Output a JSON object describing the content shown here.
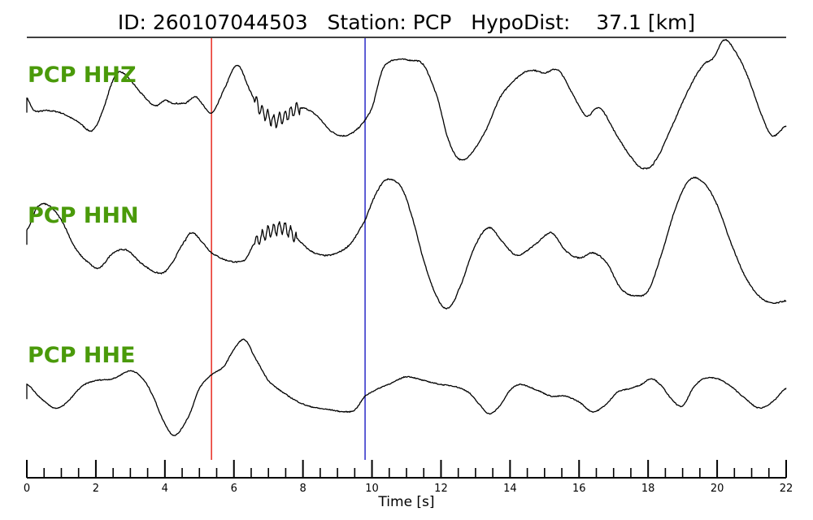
{
  "chart_data": {
    "type": "line",
    "title": "ID: 260107044503   Station: PCP   HypoDist:    37.1 [km]",
    "xlabel": "Time [s]",
    "ylabel": "",
    "xlim": [
      0,
      22
    ],
    "x_ticks": [
      "0",
      "2",
      "4",
      "6",
      "8",
      "10",
      "12",
      "14",
      "16",
      "18",
      "20",
      "22"
    ],
    "minor_tick_step": 0.5,
    "grid": false,
    "label_color": "#4a9a0a",
    "trace_color": "#000000",
    "picks": [
      {
        "name": "P",
        "x": 5.35,
        "color": "#e8281e"
      },
      {
        "name": "S",
        "x": 9.8,
        "color": "#2a2ac8"
      }
    ],
    "series": [
      {
        "name": "PCP HHZ",
        "jitter_x": [
          6.6,
          7.9
        ],
        "points": [
          [
            0,
            0.2
          ],
          [
            0.2,
            -0.05
          ],
          [
            0.6,
            -0.05
          ],
          [
            1.0,
            -0.1
          ],
          [
            1.5,
            -0.28
          ],
          [
            1.9,
            -0.45
          ],
          [
            2.2,
            -0.05
          ],
          [
            2.5,
            0.55
          ],
          [
            2.7,
            0.72
          ],
          [
            3.0,
            0.55
          ],
          [
            3.3,
            0.3
          ],
          [
            3.7,
            0.05
          ],
          [
            4.0,
            0.15
          ],
          [
            4.2,
            0.1
          ],
          [
            4.6,
            0.1
          ],
          [
            4.9,
            0.22
          ],
          [
            5.35,
            -0.1
          ],
          [
            5.7,
            0.35
          ],
          [
            6.1,
            0.85
          ],
          [
            6.5,
            0.3
          ],
          [
            6.8,
            -0.05
          ],
          [
            7.2,
            -0.25
          ],
          [
            7.6,
            -0.1
          ],
          [
            8.0,
            0.0
          ],
          [
            8.4,
            -0.15
          ],
          [
            8.8,
            -0.45
          ],
          [
            9.2,
            -0.55
          ],
          [
            9.6,
            -0.4
          ],
          [
            10.0,
            0.0
          ],
          [
            10.3,
            0.75
          ],
          [
            10.6,
            0.95
          ],
          [
            11.1,
            0.95
          ],
          [
            11.5,
            0.85
          ],
          [
            11.9,
            0.2
          ],
          [
            12.2,
            -0.6
          ],
          [
            12.5,
            -1.0
          ],
          [
            12.8,
            -0.95
          ],
          [
            13.3,
            -0.45
          ],
          [
            13.7,
            0.2
          ],
          [
            14.2,
            0.6
          ],
          [
            14.6,
            0.75
          ],
          [
            15.0,
            0.7
          ],
          [
            15.4,
            0.75
          ],
          [
            15.8,
            0.3
          ],
          [
            16.2,
            -0.15
          ],
          [
            16.6,
            0.0
          ],
          [
            17.1,
            -0.55
          ],
          [
            17.6,
            -1.05
          ],
          [
            17.9,
            -1.2
          ],
          [
            18.2,
            -1.05
          ],
          [
            18.7,
            -0.35
          ],
          [
            19.2,
            0.4
          ],
          [
            19.6,
            0.85
          ],
          [
            19.9,
            1.0
          ],
          [
            20.2,
            1.35
          ],
          [
            20.5,
            1.15
          ],
          [
            20.9,
            0.6
          ],
          [
            21.3,
            -0.15
          ],
          [
            21.6,
            -0.55
          ],
          [
            22.0,
            -0.35
          ]
        ]
      },
      {
        "name": "PCP HHN",
        "jitter_x": [
          6.6,
          7.8
        ],
        "points": [
          [
            0,
            0.35
          ],
          [
            0.3,
            0.8
          ],
          [
            0.6,
            0.85
          ],
          [
            1.0,
            0.55
          ],
          [
            1.4,
            0.0
          ],
          [
            1.8,
            -0.3
          ],
          [
            2.1,
            -0.4
          ],
          [
            2.5,
            -0.1
          ],
          [
            2.9,
            -0.05
          ],
          [
            3.3,
            -0.3
          ],
          [
            3.8,
            -0.5
          ],
          [
            4.1,
            -0.4
          ],
          [
            4.6,
            0.15
          ],
          [
            4.8,
            0.3
          ],
          [
            5.1,
            0.1
          ],
          [
            5.35,
            -0.1
          ],
          [
            5.8,
            -0.25
          ],
          [
            6.3,
            -0.25
          ],
          [
            6.6,
            0.1
          ],
          [
            7.0,
            0.3
          ],
          [
            7.4,
            0.4
          ],
          [
            7.8,
            0.2
          ],
          [
            8.2,
            -0.05
          ],
          [
            8.6,
            -0.15
          ],
          [
            9.0,
            -0.1
          ],
          [
            9.4,
            0.1
          ],
          [
            9.8,
            0.55
          ],
          [
            10.1,
            1.05
          ],
          [
            10.4,
            1.35
          ],
          [
            10.8,
            1.25
          ],
          [
            11.1,
            0.75
          ],
          [
            11.5,
            -0.25
          ],
          [
            11.9,
            -1.0
          ],
          [
            12.2,
            -1.2
          ],
          [
            12.5,
            -0.85
          ],
          [
            13.0,
            0.05
          ],
          [
            13.4,
            0.4
          ],
          [
            13.8,
            0.1
          ],
          [
            14.2,
            -0.15
          ],
          [
            14.7,
            0.05
          ],
          [
            15.2,
            0.3
          ],
          [
            15.6,
            -0.05
          ],
          [
            16.0,
            -0.2
          ],
          [
            16.4,
            -0.1
          ],
          [
            16.8,
            -0.3
          ],
          [
            17.2,
            -0.8
          ],
          [
            17.6,
            -0.95
          ],
          [
            18.0,
            -0.85
          ],
          [
            18.4,
            -0.1
          ],
          [
            18.8,
            0.8
          ],
          [
            19.2,
            1.35
          ],
          [
            19.6,
            1.3
          ],
          [
            20.0,
            0.85
          ],
          [
            20.4,
            0.1
          ],
          [
            20.8,
            -0.55
          ],
          [
            21.2,
            -0.95
          ],
          [
            21.6,
            -1.1
          ],
          [
            22.0,
            -1.05
          ]
        ]
      },
      {
        "name": "PCP HHE",
        "jitter_x": [],
        "points": [
          [
            0,
            0.1
          ],
          [
            0.4,
            -0.25
          ],
          [
            0.8,
            -0.5
          ],
          [
            1.1,
            -0.4
          ],
          [
            1.6,
            0.05
          ],
          [
            2.0,
            0.2
          ],
          [
            2.5,
            0.25
          ],
          [
            3.0,
            0.45
          ],
          [
            3.3,
            0.3
          ],
          [
            3.6,
            -0.1
          ],
          [
            4.0,
            -0.9
          ],
          [
            4.3,
            -1.2
          ],
          [
            4.7,
            -0.7
          ],
          [
            5.0,
            0.0
          ],
          [
            5.35,
            0.35
          ],
          [
            5.7,
            0.55
          ],
          [
            6.0,
            1.0
          ],
          [
            6.3,
            1.25
          ],
          [
            6.6,
            0.8
          ],
          [
            7.0,
            0.2
          ],
          [
            7.5,
            -0.15
          ],
          [
            8.0,
            -0.4
          ],
          [
            8.4,
            -0.5
          ],
          [
            8.8,
            -0.55
          ],
          [
            9.2,
            -0.6
          ],
          [
            9.5,
            -0.55
          ],
          [
            9.8,
            -0.2
          ],
          [
            10.2,
            0.0
          ],
          [
            10.6,
            0.15
          ],
          [
            11.0,
            0.3
          ],
          [
            11.5,
            0.2
          ],
          [
            12.0,
            0.1
          ],
          [
            12.4,
            0.05
          ],
          [
            12.8,
            -0.1
          ],
          [
            13.1,
            -0.4
          ],
          [
            13.4,
            -0.65
          ],
          [
            13.7,
            -0.45
          ],
          [
            14.0,
            -0.05
          ],
          [
            14.3,
            0.1
          ],
          [
            14.8,
            -0.05
          ],
          [
            15.2,
            -0.2
          ],
          [
            15.6,
            -0.2
          ],
          [
            16.0,
            -0.35
          ],
          [
            16.4,
            -0.6
          ],
          [
            16.8,
            -0.4
          ],
          [
            17.1,
            -0.1
          ],
          [
            17.5,
            0.0
          ],
          [
            17.8,
            0.1
          ],
          [
            18.1,
            0.25
          ],
          [
            18.4,
            0.05
          ],
          [
            18.7,
            -0.3
          ],
          [
            19.0,
            -0.45
          ],
          [
            19.3,
            0.0
          ],
          [
            19.6,
            0.25
          ],
          [
            20.0,
            0.25
          ],
          [
            20.4,
            0.05
          ],
          [
            20.8,
            -0.25
          ],
          [
            21.2,
            -0.5
          ],
          [
            21.6,
            -0.35
          ],
          [
            22.0,
            0.0
          ]
        ]
      }
    ]
  }
}
